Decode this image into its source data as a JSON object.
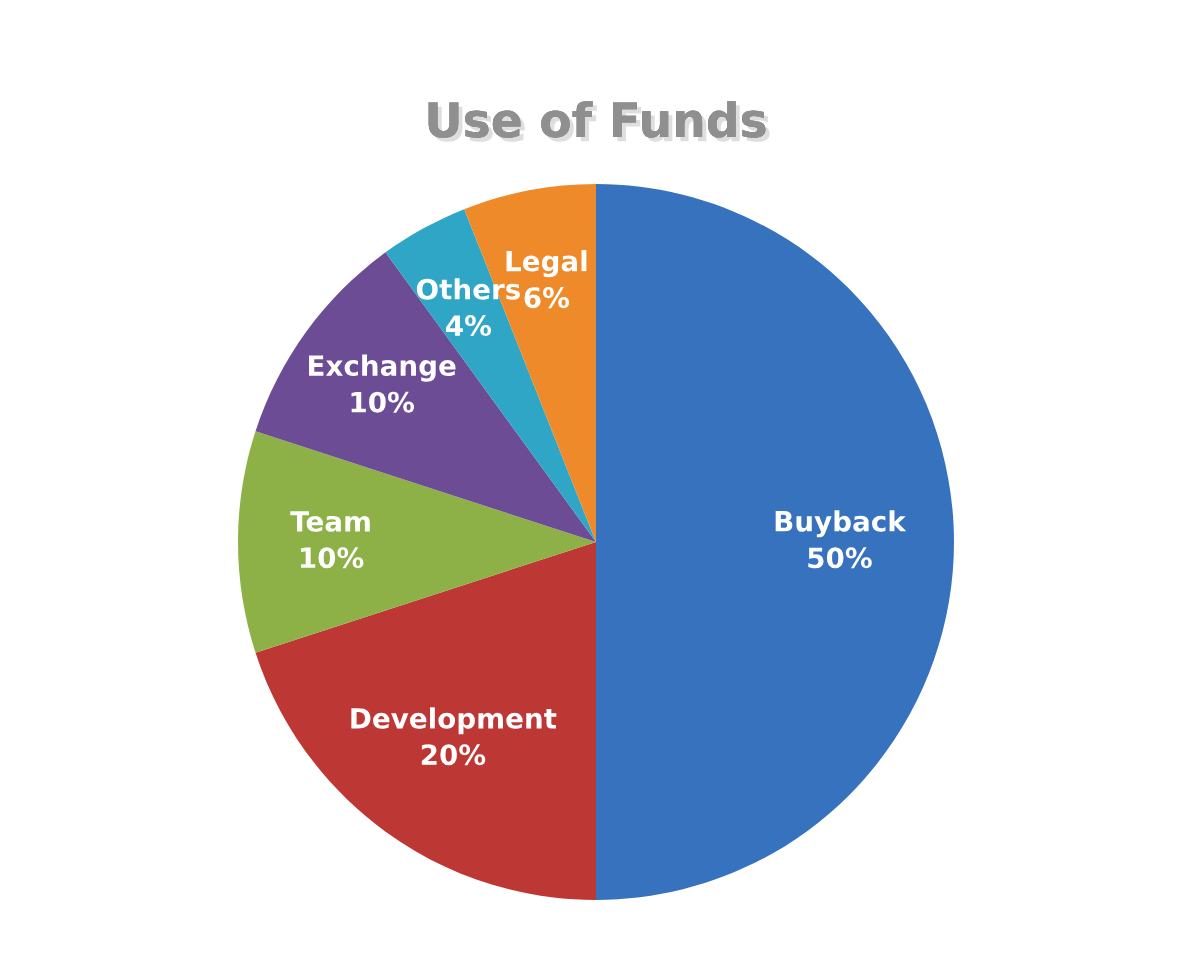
{
  "chart_data": {
    "type": "pie",
    "title": "Use of Funds",
    "categories": [
      "Buyback",
      "Development",
      "Team",
      "Exchange",
      "Others",
      "Legal"
    ],
    "values": [
      50,
      20,
      10,
      10,
      4,
      6
    ],
    "colors": [
      "#3672be",
      "#bd3835",
      "#8db147",
      "#6c4d95",
      "#30a6c6",
      "#ef8a2a"
    ],
    "value_labels": [
      "50%",
      "20%",
      "10%",
      "10%",
      "4%",
      "6%"
    ]
  }
}
